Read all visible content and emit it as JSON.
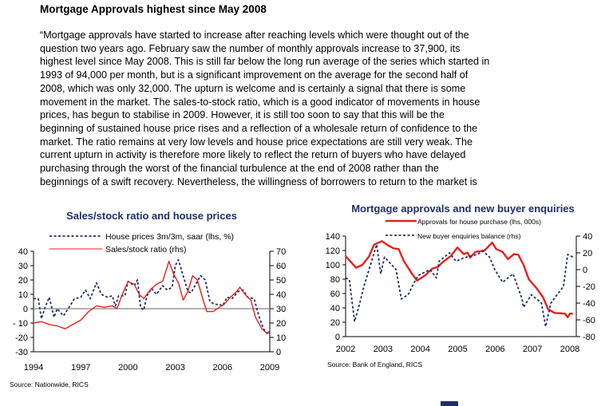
{
  "heading": "Mortgage Approvals highest since May 2008",
  "paragraph_lines": [
    "“Mortgage approvals have started to increase after reaching levels which were thought out of the",
    "question two years ago. February saw the number of monthly approvals increase to 37,900, its",
    "highest level since May 2008. This is still far below the long run average of the series which started in",
    "1993 of 94,000 per month, but is a significant improvement on the average for the second half of",
    "2008, which was only 32,000. The upturn is welcome and is certainly a signal that there is some",
    "movement in the market.  The sales-to-stock ratio, which is a good indicator of movements in house",
    "prices, has begun to stabilise in 2009. However, it is still too soon to say that this will be the",
    "beginning of sustained house price rises and a reflection of a wholesale return of confidence to the",
    "market.  The ratio remains at very low levels and house price expectations are still very weak.  The",
    "current upturn in activity is therefore more likely to reflect the return of buyers who have delayed",
    "purchasing through the worst of the financial turbulence at the end of 2008 rather than the",
    "beginnings of a swift recovery. Nevertheless, the willingness of borrowers to return to the market is"
  ],
  "colors": {
    "navy": "#1f2f6e",
    "red": "#e8201c",
    "zero_line": "#999999"
  },
  "chart_data": [
    {
      "type": "line",
      "title": "Sales/stock ratio and house prices",
      "source": "Source: Nationwide, RICS",
      "xlim": [
        1994,
        2009
      ],
      "x_ticks": [
        "1994",
        "1997",
        "2000",
        "2003",
        "2006",
        "2009"
      ],
      "x_tick_values": [
        1994,
        1997,
        2000,
        2003,
        2006,
        2009
      ],
      "ylim_left": [
        -30,
        40
      ],
      "y_ticks_left": [
        "40",
        "30",
        "20",
        "10",
        "0",
        "- 10",
        "-20",
        "-30"
      ],
      "y_tick_values_left": [
        40,
        30,
        20,
        10,
        0,
        -10,
        -20,
        -30
      ],
      "ylim_right": [
        0,
        70
      ],
      "y_ticks_right": [
        "70",
        "60",
        "50",
        "40",
        "30",
        "20",
        "10",
        "0"
      ],
      "y_tick_values_right": [
        70,
        60,
        50,
        40,
        30,
        20,
        10,
        0
      ],
      "zero_line": 0,
      "legend_placement": "top-left",
      "series": [
        {
          "name": "House prices 3m/3m, saar (lhs, %)",
          "axis": "left",
          "style": "dashed",
          "color": "#1f2f6e",
          "points": [
            [
              1994,
              7
            ],
            [
              1994.3,
              7
            ],
            [
              1994.5,
              -7
            ],
            [
              1994.7,
              0
            ],
            [
              1995,
              8
            ],
            [
              1995.3,
              -6
            ],
            [
              1995.5,
              0
            ],
            [
              1995.9,
              -5
            ],
            [
              1996.2,
              0
            ],
            [
              1996.6,
              7
            ],
            [
              1997,
              8
            ],
            [
              1997.3,
              13
            ],
            [
              1997.6,
              7
            ],
            [
              1998,
              18
            ],
            [
              1998.3,
              10
            ],
            [
              1998.7,
              8
            ],
            [
              1999,
              9
            ],
            [
              1999.2,
              2
            ],
            [
              1999.4,
              9
            ],
            [
              1999.8,
              9
            ],
            [
              2000,
              19
            ],
            [
              2000.4,
              16
            ],
            [
              2000.6,
              20
            ],
            [
              2000.8,
              1
            ],
            [
              2001,
              -1
            ],
            [
              2001.2,
              9
            ],
            [
              2001.5,
              14
            ],
            [
              2001.8,
              10
            ],
            [
              2002.2,
              16
            ],
            [
              2002.5,
              13
            ],
            [
              2002.8,
              15
            ],
            [
              2003,
              30
            ],
            [
              2003.2,
              34
            ],
            [
              2003.5,
              23
            ],
            [
              2003.8,
              12
            ],
            [
              2004,
              11
            ],
            [
              2004.3,
              17
            ],
            [
              2004.6,
              23
            ],
            [
              2004.9,
              20
            ],
            [
              2005.2,
              5
            ],
            [
              2005.5,
              3
            ],
            [
              2005.8,
              3
            ],
            [
              2006,
              2
            ],
            [
              2006.3,
              8
            ],
            [
              2006.6,
              7
            ],
            [
              2007,
              12
            ],
            [
              2007.3,
              13
            ],
            [
              2007.6,
              8
            ],
            [
              2008,
              7
            ],
            [
              2008.3,
              -5
            ],
            [
              2008.6,
              -14
            ],
            [
              2008.9,
              -18
            ],
            [
              2009,
              -15
            ]
          ]
        },
        {
          "name": "Sales/stock ratio (rhs)",
          "axis": "right",
          "style": "solid",
          "color": "#e8201c",
          "points": [
            [
              1994,
              20
            ],
            [
              1994.5,
              21
            ],
            [
              1995,
              19
            ],
            [
              1995.5,
              18
            ],
            [
              1996,
              16
            ],
            [
              1996.5,
              19
            ],
            [
              1997,
              22
            ],
            [
              1997.5,
              28
            ],
            [
              1998,
              32
            ],
            [
              1998.5,
              31
            ],
            [
              1999,
              32
            ],
            [
              1999.3,
              30
            ],
            [
              1999.6,
              39
            ],
            [
              2000,
              49
            ],
            [
              2000.4,
              47
            ],
            [
              2000.7,
              40
            ],
            [
              2001,
              37
            ],
            [
              2001.4,
              43
            ],
            [
              2001.8,
              47
            ],
            [
              2002.2,
              49
            ],
            [
              2002.6,
              63
            ],
            [
              2002.9,
              54
            ],
            [
              2003.2,
              48
            ],
            [
              2003.5,
              36
            ],
            [
              2003.8,
              42
            ],
            [
              2004.1,
              53
            ],
            [
              2004.4,
              50
            ],
            [
              2004.8,
              35
            ],
            [
              2005,
              28
            ],
            [
              2005.4,
              28
            ],
            [
              2005.8,
              31
            ],
            [
              2006.1,
              33
            ],
            [
              2006.5,
              38
            ],
            [
              2006.9,
              42
            ],
            [
              2007.1,
              45
            ],
            [
              2007.5,
              39
            ],
            [
              2007.8,
              36
            ],
            [
              2008.1,
              24
            ],
            [
              2008.5,
              16
            ],
            [
              2008.8,
              13
            ],
            [
              2009,
              14
            ]
          ]
        }
      ]
    },
    {
      "type": "line",
      "title": "Mortgage approvals and new buyer enquiries",
      "source": "Source: Bank of England, RICS",
      "xlim": [
        2002,
        2008.1
      ],
      "x_ticks": [
        "2002",
        "2003",
        "2004",
        "2005",
        "2006",
        "2007",
        "2008"
      ],
      "x_tick_values": [
        2002,
        2003,
        2004,
        2005,
        2006,
        2007,
        2008
      ],
      "ylim_left": [
        0,
        140
      ],
      "y_ticks_left": [
        "140",
        "120",
        "100",
        "80",
        "60",
        "40",
        "20",
        "0"
      ],
      "y_tick_values_left": [
        140,
        120,
        100,
        80,
        60,
        40,
        20,
        0
      ],
      "ylim_right": [
        -80,
        40
      ],
      "y_ticks_right": [
        "40",
        "20",
        "0",
        "-20",
        "-40",
        "-60",
        "-80"
      ],
      "y_tick_values_right": [
        40,
        20,
        0,
        -20,
        -40,
        -60,
        -80
      ],
      "legend_placement": "top-center",
      "series": [
        {
          "name": "Approvals for house purchase (lhs, 000s)",
          "axis": "left",
          "style": "solid",
          "color": "#e8201c",
          "points": [
            [
              2002,
              112
            ],
            [
              2002.14,
              104
            ],
            [
              2002.28,
              96
            ],
            [
              2002.45,
              100
            ],
            [
              2002.63,
              112
            ],
            [
              2002.76,
              128
            ],
            [
              2002.97,
              133
            ],
            [
              2003.11,
              128
            ],
            [
              2003.28,
              123
            ],
            [
              2003.42,
              122
            ],
            [
              2003.56,
              105
            ],
            [
              2003.77,
              88
            ],
            [
              2003.91,
              78
            ],
            [
              2004.12,
              85
            ],
            [
              2004.33,
              95
            ],
            [
              2004.47,
              97
            ],
            [
              2004.6,
              104
            ],
            [
              2004.81,
              112
            ],
            [
              2004.99,
              124
            ],
            [
              2005.16,
              115
            ],
            [
              2005.26,
              117
            ],
            [
              2005.33,
              110
            ],
            [
              2005.47,
              118
            ],
            [
              2005.72,
              120
            ],
            [
              2005.92,
              131
            ],
            [
              2006.03,
              122
            ],
            [
              2006.2,
              118
            ],
            [
              2006.34,
              108
            ],
            [
              2006.51,
              115
            ],
            [
              2006.62,
              114
            ],
            [
              2006.76,
              100
            ],
            [
              2006.9,
              80
            ],
            [
              2007.1,
              68
            ],
            [
              2007.28,
              55
            ],
            [
              2007.42,
              38
            ],
            [
              2007.59,
              33
            ],
            [
              2007.87,
              32
            ],
            [
              2007.94,
              27
            ],
            [
              2008,
              32
            ],
            [
              2008.08,
              32
            ]
          ]
        },
        {
          "name": "New buyer enquiries balance (rhs)",
          "axis": "right",
          "style": "dashed",
          "color": "#1f2f6e",
          "points": [
            [
              2002,
              -10
            ],
            [
              2002.1,
              -12
            ],
            [
              2002.24,
              -62
            ],
            [
              2002.38,
              -40
            ],
            [
              2002.49,
              -20
            ],
            [
              2002.73,
              15
            ],
            [
              2002.83,
              30
            ],
            [
              2002.94,
              -5
            ],
            [
              2003.04,
              15
            ],
            [
              2003.35,
              0
            ],
            [
              2003.49,
              -35
            ],
            [
              2003.67,
              -30
            ],
            [
              2003.84,
              -15
            ],
            [
              2003.94,
              -7
            ],
            [
              2004.26,
              0
            ],
            [
              2004.43,
              -10
            ],
            [
              2004.5,
              10
            ],
            [
              2004.78,
              20
            ],
            [
              2004.95,
              10
            ],
            [
              2005.16,
              14
            ],
            [
              2005.51,
              18
            ],
            [
              2005.68,
              22
            ],
            [
              2005.85,
              15
            ],
            [
              2005.99,
              0
            ],
            [
              2006.2,
              -15
            ],
            [
              2006.48,
              -5
            ],
            [
              2006.72,
              -35
            ],
            [
              2006.76,
              -45
            ],
            [
              2006.97,
              -30
            ],
            [
              2007.24,
              -40
            ],
            [
              2007.35,
              -68
            ],
            [
              2007.49,
              -40
            ],
            [
              2007.83,
              -20
            ],
            [
              2007.94,
              18
            ],
            [
              2008.08,
              15
            ]
          ]
        }
      ]
    }
  ]
}
